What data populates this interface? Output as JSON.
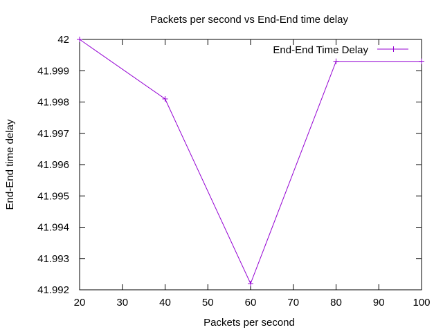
{
  "chart_data": {
    "type": "line",
    "title": "Packets per second vs End-End time delay",
    "xlabel": "Packets per second",
    "ylabel": "End-End time delay",
    "xlim": [
      20,
      100
    ],
    "ylim": [
      41.992,
      42
    ],
    "xticks": [
      20,
      30,
      40,
      50,
      60,
      70,
      80,
      90,
      100
    ],
    "yticks": [
      41.992,
      41.993,
      41.994,
      41.995,
      41.996,
      41.997,
      41.998,
      41.999,
      42
    ],
    "ytick_labels": [
      "41.992",
      "41.993",
      "41.994",
      "41.995",
      "41.996",
      "41.997",
      "41.998",
      "41.999",
      "42"
    ],
    "grid": false,
    "legend_position": "top-right",
    "series": [
      {
        "name": "End-End Time Delay",
        "color": "#9400d3",
        "marker": "plus",
        "x": [
          20,
          40,
          60,
          80,
          100
        ],
        "y": [
          42.0,
          41.9981,
          41.9922,
          41.9993,
          41.9993
        ]
      }
    ]
  }
}
